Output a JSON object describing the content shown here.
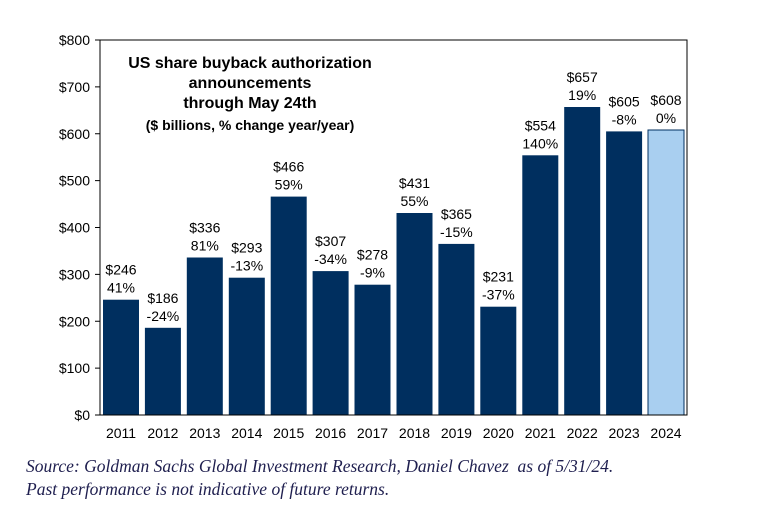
{
  "chart_data": {
    "type": "bar",
    "title_lines": [
      "US share buyback authorization",
      "announcements",
      "through May 24th"
    ],
    "subtitle": "($ billions, % change year/year)",
    "categories": [
      "2011",
      "2012",
      "2013",
      "2014",
      "2015",
      "2016",
      "2017",
      "2018",
      "2019",
      "2020",
      "2021",
      "2022",
      "2023",
      "2024"
    ],
    "values": [
      246,
      186,
      336,
      293,
      466,
      307,
      278,
      431,
      365,
      231,
      554,
      657,
      605,
      608
    ],
    "value_labels": [
      "$246",
      "$186",
      "$336",
      "$293",
      "$466",
      "$307",
      "$278",
      "$431",
      "$365",
      "$231",
      "$554",
      "$657",
      "$605",
      "$608"
    ],
    "pct_labels": [
      "41%",
      "-24%",
      "81%",
      "-13%",
      "59%",
      "-34%",
      "-9%",
      "55%",
      "-15%",
      "-37%",
      "140%",
      "19%",
      "-8%",
      "0%"
    ],
    "highlight_index": 13,
    "ylim": [
      0,
      800
    ],
    "yticks": [
      0,
      100,
      200,
      300,
      400,
      500,
      600,
      700,
      800
    ],
    "ytick_labels": [
      "$0",
      "$100",
      "$200",
      "$300",
      "$400",
      "$500",
      "$600",
      "$700",
      "$800"
    ],
    "xlabel": "",
    "ylabel": "",
    "grid": false,
    "colors": {
      "bar": "#002F5F",
      "highlight": "#A9CFF0",
      "highlight_edge": "#002F5F"
    }
  },
  "source_lines": [
    "Source: Goldman Sachs Global Investment Research, Daniel Chavez  as of 5/31/24.",
    "Past performance is not indicative of future returns."
  ]
}
